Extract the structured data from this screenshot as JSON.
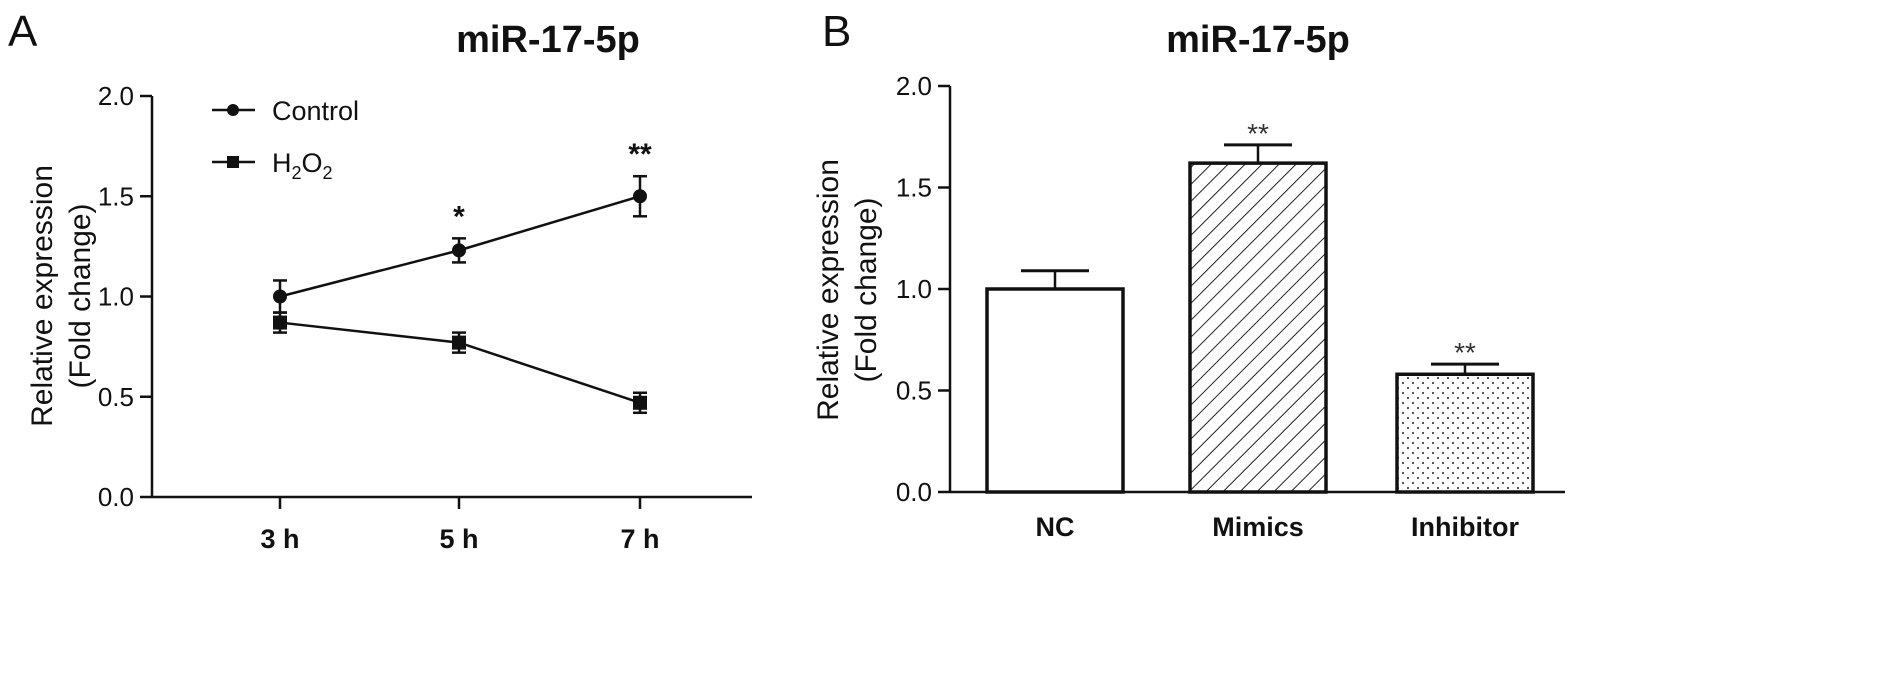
{
  "chart_data": [
    {
      "type": "line",
      "panel": "A",
      "title": "miR-17-5p",
      "ylabel": [
        "Relative expression",
        "(Fold change)"
      ],
      "xlabel": "",
      "categories": [
        "3 h",
        "5 h",
        "7 h"
      ],
      "ylim": [
        0,
        2.0
      ],
      "yticks": [
        "0.0",
        "0.5",
        "1.0",
        "1.5",
        "2.0"
      ],
      "legend_position": "top-left",
      "series": [
        {
          "name": "Control",
          "marker": "circle",
          "values": [
            1.0,
            1.23,
            1.5
          ],
          "errors": [
            0.08,
            0.06,
            0.1
          ]
        },
        {
          "name": "H2O2",
          "name_parts": {
            "base1": "H",
            "sub1": "2",
            "base2": "O",
            "sub2": "2"
          },
          "marker": "square",
          "values": [
            0.87,
            0.77,
            0.47
          ],
          "errors": [
            0.05,
            0.05,
            0.05
          ]
        }
      ],
      "annotations": [
        {
          "category": "5 h",
          "text": "*"
        },
        {
          "category": "7 h",
          "text": "**"
        }
      ]
    },
    {
      "type": "bar",
      "panel": "B",
      "title": "miR-17-5p",
      "ylabel": [
        "Relative expression",
        "(Fold change)"
      ],
      "xlabel": "",
      "categories": [
        "NC",
        "Mimics",
        "Inhibitor"
      ],
      "ylim": [
        0,
        2.0
      ],
      "yticks": [
        "0.0",
        "0.5",
        "1.0",
        "1.5",
        "2.0"
      ],
      "values": [
        1.0,
        1.62,
        0.58
      ],
      "errors": [
        0.09,
        0.09,
        0.05
      ],
      "fills": [
        "white",
        "diagonal-hatch",
        "dots"
      ],
      "annotations": [
        {
          "category": "Mimics",
          "text": "**"
        },
        {
          "category": "Inhibitor",
          "text": "**"
        }
      ]
    }
  ]
}
